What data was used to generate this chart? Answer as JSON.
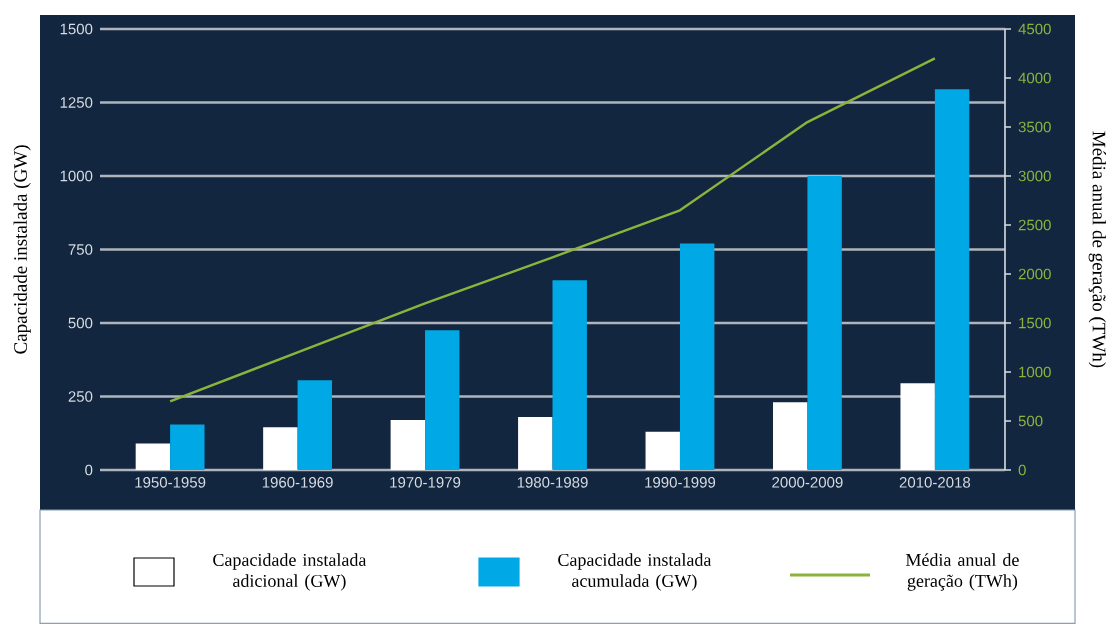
{
  "chart_data": {
    "type": "bar",
    "categories": [
      "1950-1959",
      "1960-1969",
      "1970-1979",
      "1980-1989",
      "1990-1999",
      "2000-2009",
      "2010-2018"
    ],
    "series": [
      {
        "name": "Capacidade instalada adicional (GW)",
        "color": "#ffffff",
        "values": [
          90,
          145,
          170,
          180,
          130,
          230,
          295
        ]
      },
      {
        "name": "Capacidade instalada acumulada (GW)",
        "color": "#00a8e6",
        "values": [
          155,
          305,
          475,
          645,
          770,
          1000,
          1295
        ]
      },
      {
        "name": "Média anual de geração (TWh)",
        "type": "line",
        "axis": "y2",
        "color": "#8cb43c",
        "values": [
          700,
          1200,
          1700,
          2170,
          2650,
          3550,
          4200
        ]
      }
    ],
    "ylabel": "Capacidade instalada (GW)",
    "y2label": "Média anual de geração (TWh)",
    "ylim": [
      0,
      1500
    ],
    "yticks": [
      0,
      250,
      500,
      750,
      1000,
      1250,
      1500
    ],
    "y2lim": [
      0,
      4500
    ],
    "y2ticks": [
      0,
      500,
      1000,
      1500,
      2000,
      2500,
      3000,
      3500,
      4000,
      4500
    ],
    "grid": "y",
    "legend": "bottom",
    "marker": "none"
  }
}
